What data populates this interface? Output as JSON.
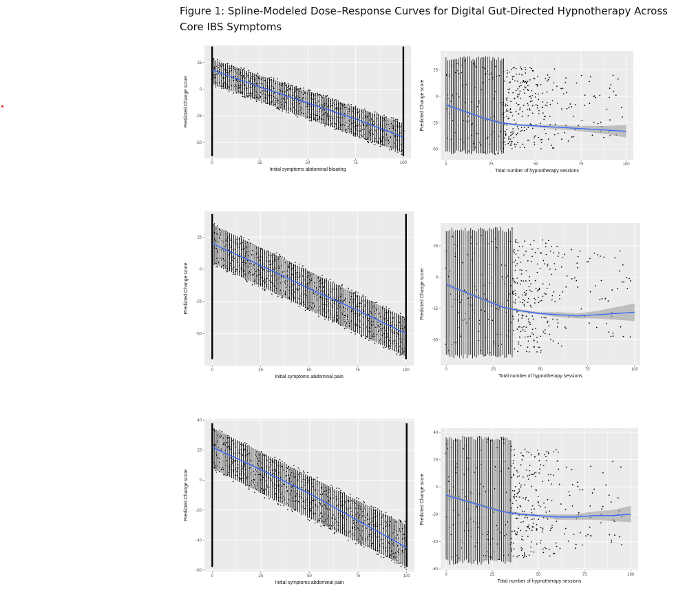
{
  "figure": {
    "caption": "Figure 1: Spline-Modeled Dose–Response Curves for Digital Gut-Directed Hypnotherapy Across Core IBS Symptoms"
  },
  "colors": {
    "panel_bg": "#ebebeb",
    "grid": "#ffffff",
    "points": "#000000",
    "fit_line": "#3366ff",
    "ci_band": "#999999"
  },
  "chart_data": [
    {
      "type": "scatter",
      "style": "baseline",
      "xlabel": "Initial symptoms abdominal bloating",
      "ylabel": "Predicted Change score",
      "xlim": [
        -4,
        104
      ],
      "ylim": [
        -65,
        41
      ],
      "xticks": [
        0,
        25,
        50,
        75,
        100
      ],
      "yticks": [
        25,
        0,
        -25,
        -50
      ],
      "grid": true,
      "points": {
        "density": 9,
        "x_range": [
          0,
          100
        ],
        "y_at_x0": [
          5,
          28
        ],
        "y_at_x100": [
          -60,
          -32
        ],
        "endpoint_spread": [
          -63,
          40
        ]
      },
      "fit_line": {
        "x": [
          0,
          25,
          50,
          75,
          100
        ],
        "y": [
          18,
          2,
          -13,
          -28,
          -45
        ]
      }
    },
    {
      "type": "scatter",
      "style": "sessions",
      "xlabel": "Total number of hypnotherapy sessions",
      "ylabel": "Predicted Change score",
      "xlim": [
        -3,
        104
      ],
      "ylim": [
        -60,
        43
      ],
      "xticks": [
        0,
        25,
        50,
        75,
        100
      ],
      "yticks": [
        25,
        0,
        -25,
        -50
      ],
      "grid": true,
      "points": {
        "density": 3,
        "dense_x_max": 32,
        "y_range_dense": [
          -55,
          38
        ],
        "sparse_x_max": 98
      },
      "fit_line": {
        "x": [
          0,
          10,
          20,
          30,
          40,
          50,
          60,
          70,
          80,
          90,
          100
        ],
        "y": [
          -8,
          -14,
          -20,
          -25,
          -27,
          -28,
          -29,
          -30,
          -31,
          -32,
          -33
        ]
      },
      "ci_band": {
        "x": [
          0,
          10,
          20,
          30,
          40,
          50,
          60,
          70,
          80,
          90,
          100
        ],
        "half_width": [
          2,
          1,
          1,
          1,
          1,
          1,
          2,
          2,
          3,
          4,
          6
        ]
      }
    },
    {
      "type": "scatter",
      "style": "baseline",
      "xlabel": "Initial symptoms abdominal pain",
      "ylabel": "Predicted Change score",
      "xlim": [
        -4,
        104
      ],
      "ylim": [
        -75,
        45
      ],
      "xticks": [
        0,
        25,
        50,
        75,
        100
      ],
      "yticks": [
        25,
        0,
        -25,
        -50
      ],
      "grid": true,
      "points": {
        "density": 9,
        "x_range": [
          0,
          100
        ],
        "y_at_x0": [
          5,
          35
        ],
        "y_at_x100": [
          -68,
          -38
        ],
        "endpoint_spread": [
          -70,
          43
        ]
      },
      "fit_line": {
        "x": [
          0,
          25,
          50,
          75,
          100
        ],
        "y": [
          20,
          3,
          -15,
          -32,
          -50
        ]
      }
    },
    {
      "type": "scatter",
      "style": "sessions",
      "xlabel": "Total number of hypnotherapy sessions",
      "ylabel": "Predicted Change score",
      "xlim": [
        -3,
        103
      ],
      "ylim": [
        -70,
        43
      ],
      "xticks": [
        0,
        25,
        50,
        75,
        100
      ],
      "yticks": [
        25,
        0,
        -25,
        -50
      ],
      "grid": true,
      "points": {
        "density": 3,
        "dense_x_max": 35,
        "y_range_dense": [
          -65,
          40
        ],
        "sparse_x_max": 98
      },
      "fit_line": {
        "x": [
          0,
          10,
          20,
          30,
          40,
          50,
          60,
          70,
          80,
          90,
          100
        ],
        "y": [
          -6,
          -12,
          -18,
          -24,
          -27,
          -29,
          -30,
          -31,
          -30,
          -29,
          -28
        ]
      },
      "ci_band": {
        "x": [
          0,
          10,
          20,
          30,
          40,
          50,
          60,
          70,
          80,
          90,
          100
        ],
        "half_width": [
          2,
          1,
          1,
          1,
          1,
          1,
          2,
          2,
          3,
          5,
          7
        ]
      }
    },
    {
      "type": "scatter",
      "style": "baseline",
      "xlabel": "Initial symptoms abdominal pain",
      "ylabel": "Predicted Change score",
      "xlim": [
        -4,
        104
      ],
      "ylim": [
        -61,
        41
      ],
      "xticks": [
        0,
        25,
        50,
        75,
        100
      ],
      "yticks": [
        40,
        20,
        0,
        -20,
        -40,
        -60
      ],
      "grid": true,
      "points": {
        "density": 9,
        "x_range": [
          0,
          100
        ],
        "y_at_x0": [
          8,
          35
        ],
        "y_at_x100": [
          -58,
          -30
        ],
        "endpoint_spread": [
          -58,
          38
        ]
      },
      "fit_line": {
        "x": [
          0,
          25,
          50,
          75,
          100
        ],
        "y": [
          22,
          7,
          -9,
          -27,
          -45
        ]
      }
    },
    {
      "type": "scatter",
      "style": "sessions",
      "xlabel": "Total number of hypnotherapy sessions",
      "ylabel": "Predicted Change score",
      "xlim": [
        -3,
        104
      ],
      "ylim": [
        -61,
        43
      ],
      "xticks": [
        0,
        25,
        50,
        75,
        100
      ],
      "yticks": [
        40,
        20,
        0,
        -20,
        -40,
        -60
      ],
      "grid": true,
      "points": {
        "density": 3,
        "dense_x_max": 35,
        "y_range_dense": [
          -57,
          38
        ],
        "sparse_x_max": 98
      },
      "fit_line": {
        "x": [
          0,
          10,
          20,
          30,
          40,
          50,
          60,
          70,
          80,
          90,
          100
        ],
        "y": [
          -6,
          -10,
          -14,
          -18,
          -20,
          -21,
          -22,
          -22,
          -21,
          -21,
          -20
        ]
      },
      "ci_band": {
        "x": [
          0,
          10,
          20,
          30,
          40,
          50,
          60,
          70,
          80,
          90,
          100
        ],
        "half_width": [
          2,
          1,
          1,
          1,
          1,
          1,
          2,
          2,
          3,
          4,
          6
        ]
      }
    }
  ]
}
